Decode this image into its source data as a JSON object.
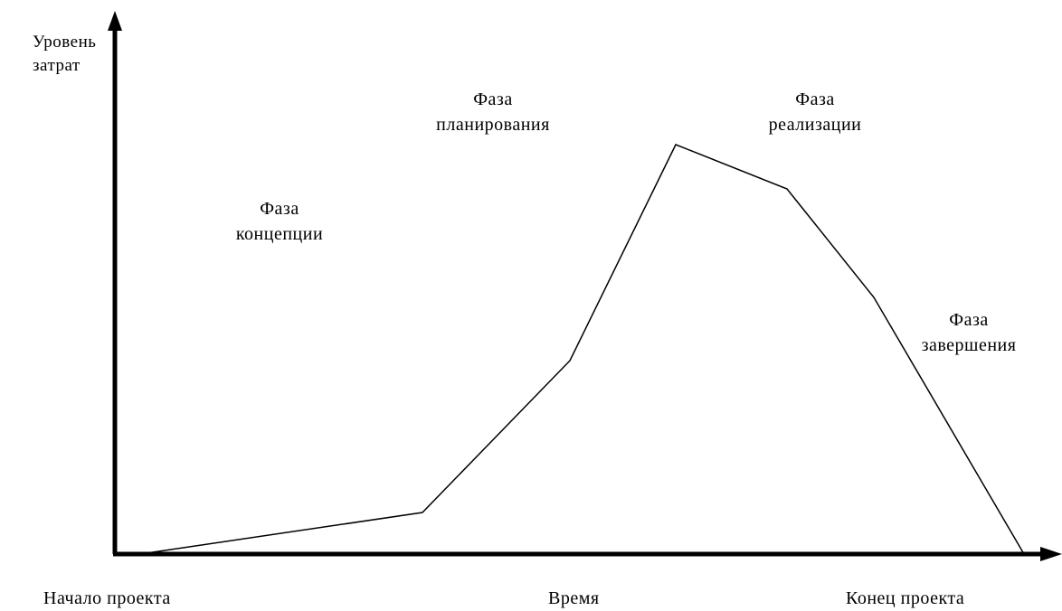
{
  "y_axis_label": [
    "Уровень",
    "затрат"
  ],
  "x_axis_label": "Время",
  "start_label": "Начало проекта",
  "end_label": "Конец проекта",
  "phases": [
    {
      "line1": "Фаза",
      "line2": "концепции"
    },
    {
      "line1": "Фаза",
      "line2": "планирования"
    },
    {
      "line1": "Фаза",
      "line2": "реализации"
    },
    {
      "line1": "Фаза",
      "line2": "завершения"
    }
  ],
  "colors": {
    "line": "#000000",
    "background": "#ffffff"
  }
}
